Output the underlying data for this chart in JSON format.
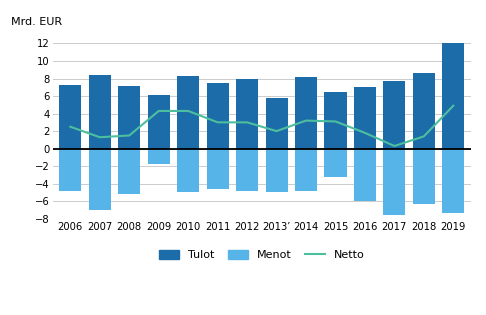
{
  "years": [
    "2006",
    "2007",
    "2008",
    "2009",
    "2010",
    "2011",
    "2012",
    "2013’",
    "2014",
    "2015",
    "2016",
    "2017",
    "2018",
    "2019"
  ],
  "tulot": [
    7.3,
    8.4,
    7.2,
    6.1,
    8.3,
    7.5,
    7.9,
    5.8,
    8.2,
    6.5,
    7.0,
    7.7,
    8.6,
    12.1
  ],
  "menot": [
    -4.8,
    -7.0,
    -5.2,
    -1.8,
    -4.9,
    -4.6,
    -4.8,
    -5.0,
    -4.8,
    -3.2,
    -6.0,
    -7.6,
    -6.3,
    -7.4
  ],
  "netto": [
    2.5,
    1.3,
    1.5,
    4.3,
    4.3,
    3.0,
    3.0,
    2.0,
    3.2,
    3.1,
    1.8,
    0.3,
    1.4,
    4.9
  ],
  "tulot_color": "#1b6ca8",
  "menot_color": "#56b4e9",
  "netto_color": "#4dbf9e",
  "ylabel": "Mrd. EUR",
  "ylim": [
    -8,
    13
  ],
  "yticks": [
    -8,
    -6,
    -4,
    -2,
    0,
    2,
    4,
    6,
    8,
    10,
    12
  ],
  "grid_color": "#cccccc",
  "background_color": "#ffffff",
  "legend_labels": [
    "Tulot",
    "Menot",
    "Netto"
  ],
  "bar_width": 0.75
}
